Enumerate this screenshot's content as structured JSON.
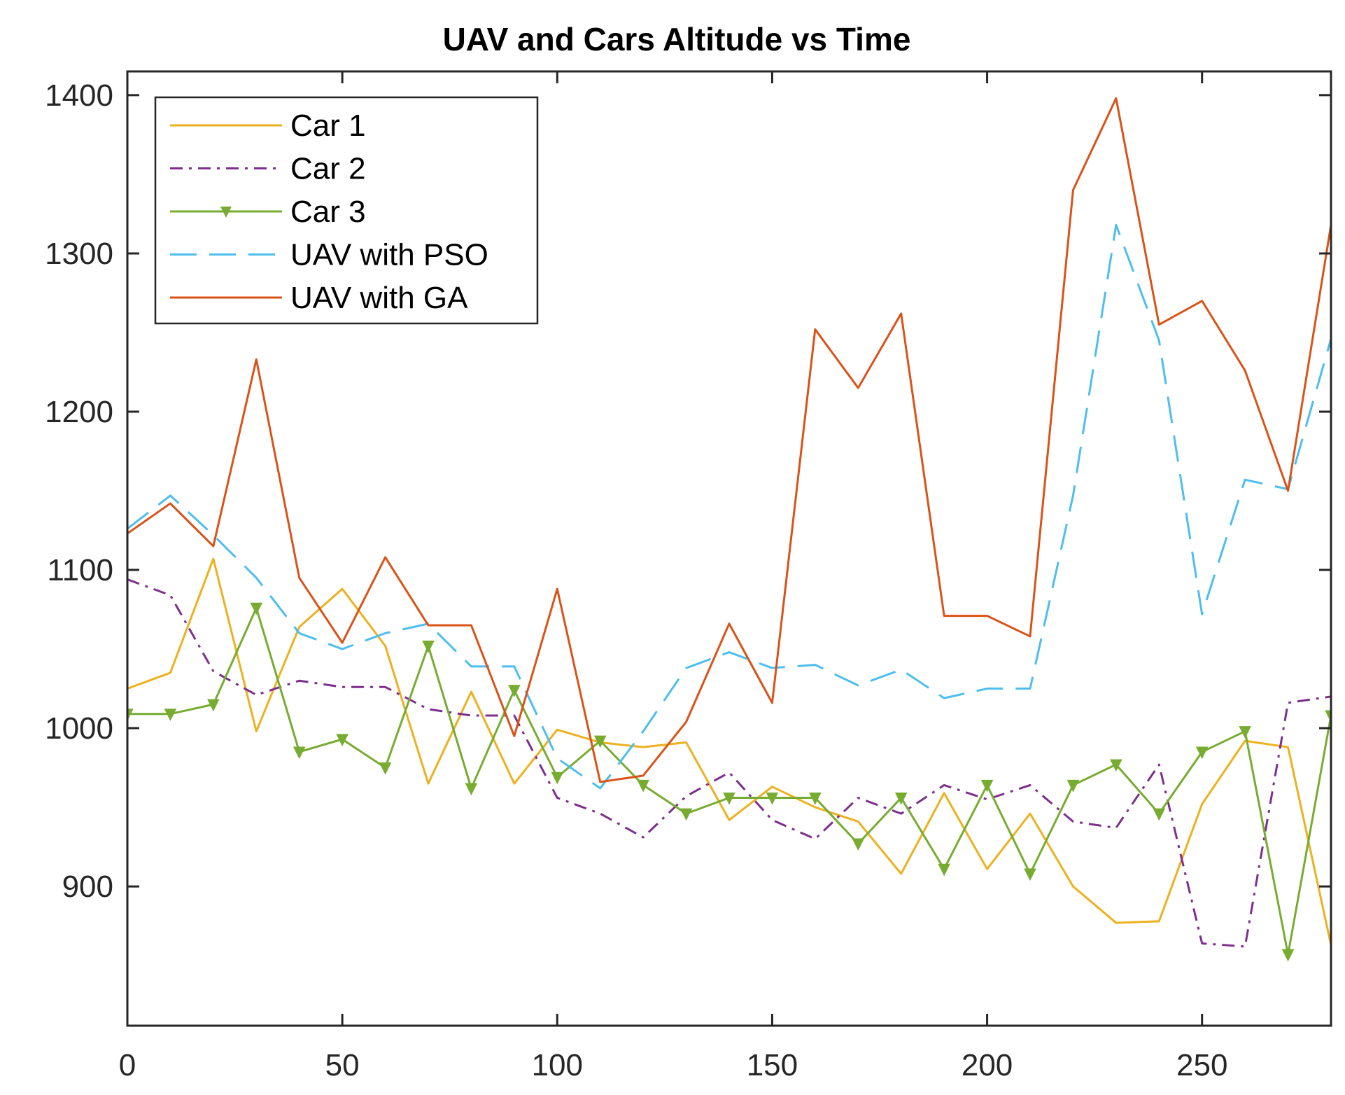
{
  "chart_data": {
    "type": "line",
    "title": "UAV and Cars Altitude vs Time",
    "xlabel": "",
    "ylabel": "",
    "xlim": [
      0,
      280
    ],
    "ylim": [
      812,
      1415
    ],
    "xticks": [
      0,
      50,
      100,
      150,
      200,
      250
    ],
    "yticks": [
      900,
      1000,
      1100,
      1200,
      1300,
      1400
    ],
    "grid": false,
    "legend_position": "top-left",
    "x": [
      0,
      10,
      20,
      30,
      40,
      50,
      60,
      70,
      80,
      90,
      100,
      110,
      120,
      130,
      140,
      150,
      160,
      170,
      180,
      190,
      200,
      210,
      220,
      230,
      240,
      250,
      260,
      270,
      280
    ],
    "series": [
      {
        "name": "Car 1",
        "color": "#EDB120",
        "style": "solid",
        "marker": "none",
        "values": [
          1025,
          1035,
          1107,
          998,
          1064,
          1088,
          1052,
          965,
          1023,
          965,
          999,
          991,
          988,
          991,
          942,
          963,
          950,
          941,
          908,
          959,
          911,
          946,
          900,
          877,
          878,
          952,
          992,
          988,
          863
        ]
      },
      {
        "name": "Car 2",
        "color": "#7E2F8E",
        "style": "dashdot",
        "marker": "none",
        "values": [
          1094,
          1084,
          1036,
          1021,
          1030,
          1026,
          1026,
          1012,
          1008,
          1008,
          956,
          946,
          931,
          957,
          972,
          942,
          930,
          956,
          946,
          964,
          955,
          964,
          941,
          937,
          977,
          864,
          862,
          1016,
          1020
        ]
      },
      {
        "name": "Car 3",
        "color": "#77AC30",
        "style": "solid",
        "marker": "triangle-down",
        "values": [
          1009,
          1009,
          1015,
          1076,
          985,
          993,
          975,
          1052,
          962,
          1024,
          969,
          992,
          964,
          946,
          956,
          956,
          956,
          927,
          956,
          911,
          964,
          908,
          964,
          977,
          946,
          985,
          998,
          857,
          1008
        ]
      },
      {
        "name": "UAV with PSO",
        "color": "#4DBEEE",
        "style": "dashed",
        "marker": "none",
        "values": [
          1126,
          1147,
          1122,
          1095,
          1060,
          1050,
          1060,
          1066,
          1039,
          1039,
          981,
          962,
          998,
          1038,
          1048,
          1038,
          1040,
          1027,
          1037,
          1019,
          1025,
          1025,
          1147,
          1318,
          1245,
          1072,
          1157,
          1151,
          1246
        ]
      },
      {
        "name": "UAV with GA",
        "color": "#D95319",
        "style": "solid",
        "marker": "none",
        "values": [
          1123,
          1142,
          1115,
          1233,
          1095,
          1054,
          1108,
          1065,
          1065,
          995,
          1088,
          966,
          970,
          1004,
          1066,
          1016,
          1252,
          1215,
          1262,
          1071,
          1071,
          1058,
          1340,
          1398,
          1255,
          1270,
          1226,
          1150,
          1318
        ]
      }
    ]
  }
}
